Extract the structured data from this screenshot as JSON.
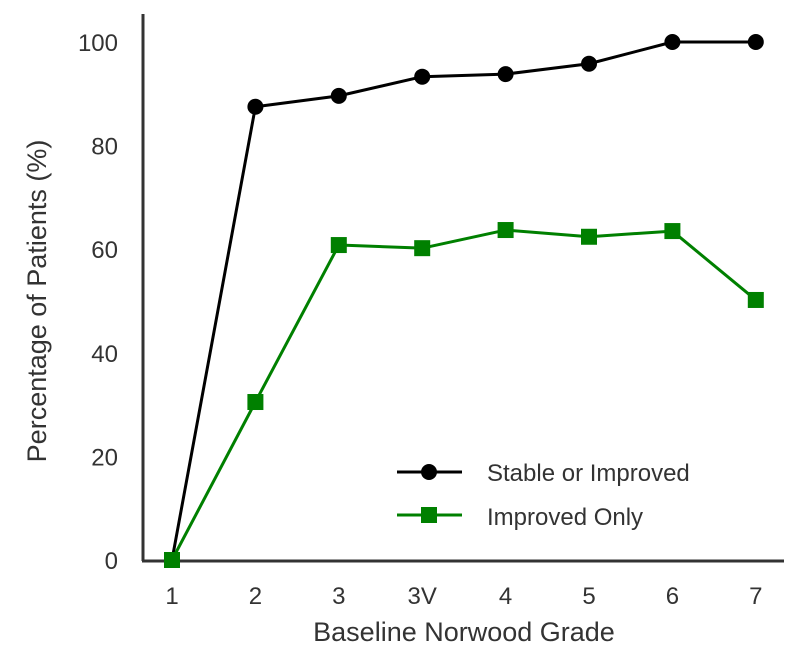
{
  "chart_data": {
    "type": "line",
    "title": "",
    "xlabel": "Baseline Norwood Grade",
    "ylabel": "Percentage of Patients (%)",
    "categories": [
      "1",
      "2",
      "3",
      "3V",
      "4",
      "5",
      "6",
      "7"
    ],
    "ylim": [
      0,
      100
    ],
    "yticks": [
      0,
      20,
      40,
      60,
      80,
      100
    ],
    "grid": false,
    "legend_position": "lower-right",
    "series": [
      {
        "name": "Stable or Improved",
        "color": "#000000",
        "marker": "circle",
        "values": [
          0,
          87.5,
          89.6,
          93.3,
          93.8,
          95.8,
          100,
          100
        ]
      },
      {
        "name": "Improved Only",
        "color": "#008000",
        "marker": "square",
        "values": [
          0,
          30.5,
          60.8,
          60.2,
          63.7,
          62.4,
          63.5,
          50.2
        ]
      }
    ]
  }
}
